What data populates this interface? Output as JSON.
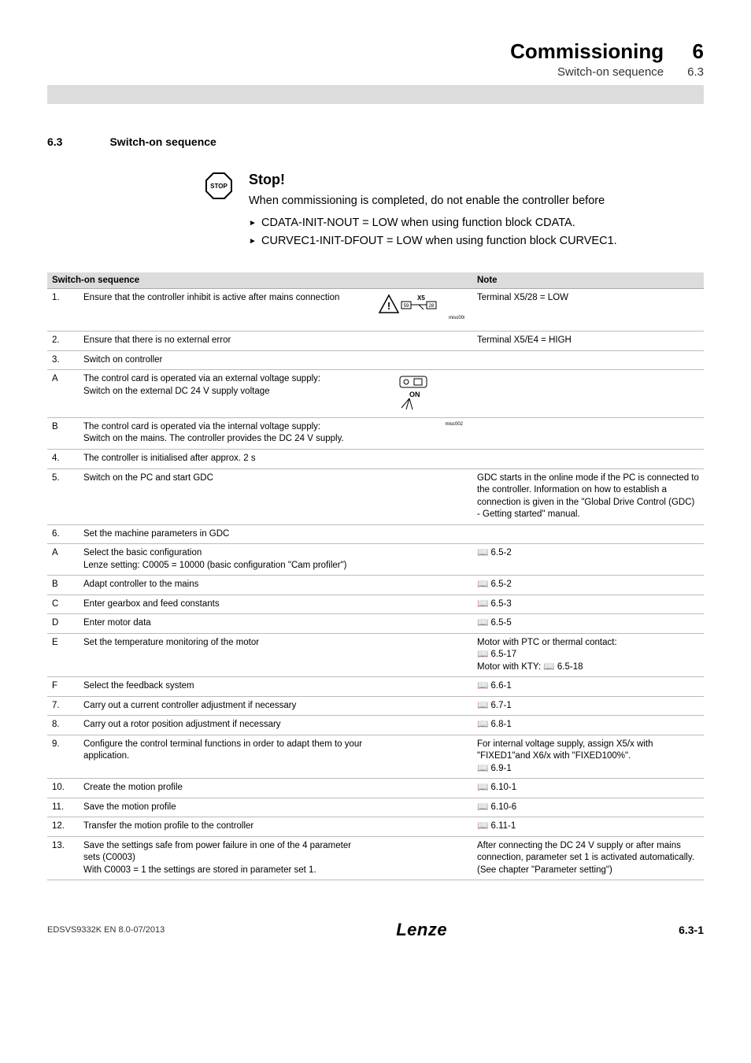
{
  "header": {
    "title": "Commissioning",
    "subtitle": "Switch-on sequence",
    "chapter": "6",
    "section": "6.3"
  },
  "section": {
    "number": "6.3",
    "title": "Switch-on sequence"
  },
  "stop": {
    "heading": "Stop!",
    "text": "When commissioning is completed, do not enable the controller before",
    "items": [
      "CDATA-INIT-NOUT = LOW when using function block CDATA.",
      "CURVEC1-INIT-DFOUT = LOW when using function block CURVEC1."
    ],
    "icon_label": "STOP"
  },
  "table": {
    "headers": {
      "seq": "Switch-on sequence",
      "note": "Note"
    },
    "rows": [
      {
        "n": "1.",
        "desc": "Ensure that the controller inhibit is active after mains connection",
        "img": "warn-x5",
        "note": "Terminal X5/28 = LOW"
      },
      {
        "n": "2.",
        "desc": "Ensure that there is no external error",
        "img": "",
        "note": "Terminal X5/E4 = HIGH"
      },
      {
        "n": "3.",
        "desc": "Switch on controller",
        "img": "",
        "note": ""
      },
      {
        "n": "A",
        "sub": true,
        "desc": "The control card is operated via an external voltage supply:\nSwitch on the external DC 24 V supply voltage",
        "img": "switch-on",
        "note": ""
      },
      {
        "n": "B",
        "sub": true,
        "desc": "The control card is operated via the internal voltage supply:\nSwitch on the mains. The controller provides the DC 24 V supply.",
        "img": "misc002",
        "note": ""
      },
      {
        "n": "4.",
        "desc": "The controller is initialised after approx. 2 s",
        "img": "",
        "note": ""
      },
      {
        "n": "5.",
        "desc": "Switch on the PC and start GDC",
        "img": "",
        "note": "GDC starts in the online mode if the PC is connected to the controller. Information on how to establish a connection is given in the \"Global Drive Control (GDC) - Getting started\" manual."
      },
      {
        "n": "6.",
        "desc": "Set the machine parameters in GDC",
        "img": "",
        "note": ""
      },
      {
        "n": "A",
        "sub": true,
        "desc": "Select the basic configuration\nLenze setting: C0005 = 10000 (basic configuration \"Cam profiler\")",
        "img": "",
        "note": "📖 6.5-2"
      },
      {
        "n": "B",
        "sub": true,
        "desc": "Adapt controller to the mains",
        "img": "",
        "note": "📖 6.5-2"
      },
      {
        "n": "C",
        "sub": true,
        "desc": "Enter gearbox and feed constants",
        "img": "",
        "note": "📖 6.5-3"
      },
      {
        "n": "D",
        "sub": true,
        "desc": "Enter motor data",
        "img": "",
        "note": "📖 6.5-5"
      },
      {
        "n": "E",
        "sub": true,
        "desc": "Set the temperature monitoring of the motor",
        "img": "",
        "note": "Motor with PTC or thermal contact:\n📖 6.5-17\nMotor with KTY: 📖 6.5-18"
      },
      {
        "n": "F",
        "sub": true,
        "desc": "Select the feedback system",
        "img": "",
        "note": "📖 6.6-1"
      },
      {
        "n": "7.",
        "desc": "Carry out a current controller adjustment if necessary",
        "img": "",
        "note": "📖 6.7-1"
      },
      {
        "n": "8.",
        "desc": "Carry out a rotor position adjustment if necessary",
        "img": "",
        "note": "📖 6.8-1"
      },
      {
        "n": "9.",
        "desc": "Configure the control terminal functions in order to adapt them to your application.",
        "img": "",
        "note": "For internal voltage supply, assign X5/x with \"FIXED1\"and X6/x with \"FIXED100%\".\n📖 6.9-1"
      },
      {
        "n": "10.",
        "desc": "Create the motion profile",
        "img": "",
        "note": "📖 6.10-1"
      },
      {
        "n": "11.",
        "desc": "Save the motion profile",
        "img": "",
        "note": "📖 6.10-6"
      },
      {
        "n": "12.",
        "desc": "Transfer the motion profile to the controller",
        "img": "",
        "note": "📖 6.11-1"
      },
      {
        "n": "13.",
        "desc": "Save the settings safe from power failure in one of the 4 parameter sets (C0003)\nWith C0003 = 1 the settings are stored in parameter set 1.",
        "img": "",
        "note": "After connecting the DC 24 V supply or after mains connection, parameter set 1 is activated automatically.\n(See chapter \"Parameter setting\")"
      }
    ],
    "img_labels": {
      "misc008": "misc008",
      "misc002": "misc002",
      "x5": "X5",
      "p59": "59",
      "p28": "28",
      "on": "ON"
    }
  },
  "footer": {
    "left": "EDSVS9332K EN 8.0-07/2013",
    "logo": "Lenze",
    "right": "6.3-1"
  },
  "colors": {
    "header_bar": "#dcdcdc",
    "table_header_bg": "#dcdcdc",
    "row_border": "#bbbbbb"
  }
}
